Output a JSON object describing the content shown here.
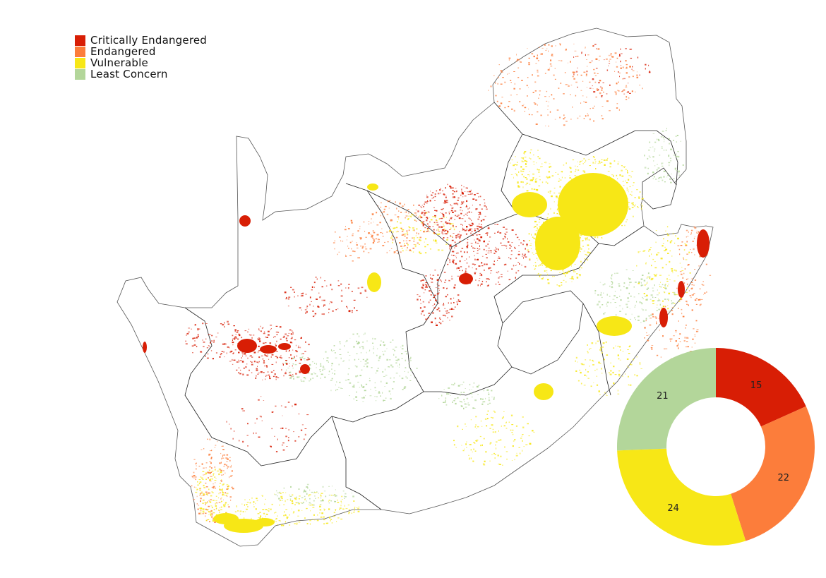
{
  "legend": {
    "items": [
      {
        "label": "Critically Endangered",
        "color": "#d81e05"
      },
      {
        "label": "Endangered",
        "color": "#fc7d3b"
      },
      {
        "label": "Vulnerable",
        "color": "#f7e716"
      },
      {
        "label": "Least Concern",
        "color": "#b3d69a"
      }
    ]
  },
  "chart_data": {
    "type": "pie",
    "variant": "donut",
    "title": "",
    "categories": [
      "Critically Endangered",
      "Endangered",
      "Vulnerable",
      "Least Concern"
    ],
    "values": [
      15,
      22,
      24,
      21
    ],
    "colors": [
      "#d81e05",
      "#fc7d3b",
      "#f7e716",
      "#b3d69a"
    ]
  },
  "map": {
    "outline_color": "#555555",
    "province_color": "#222222"
  }
}
